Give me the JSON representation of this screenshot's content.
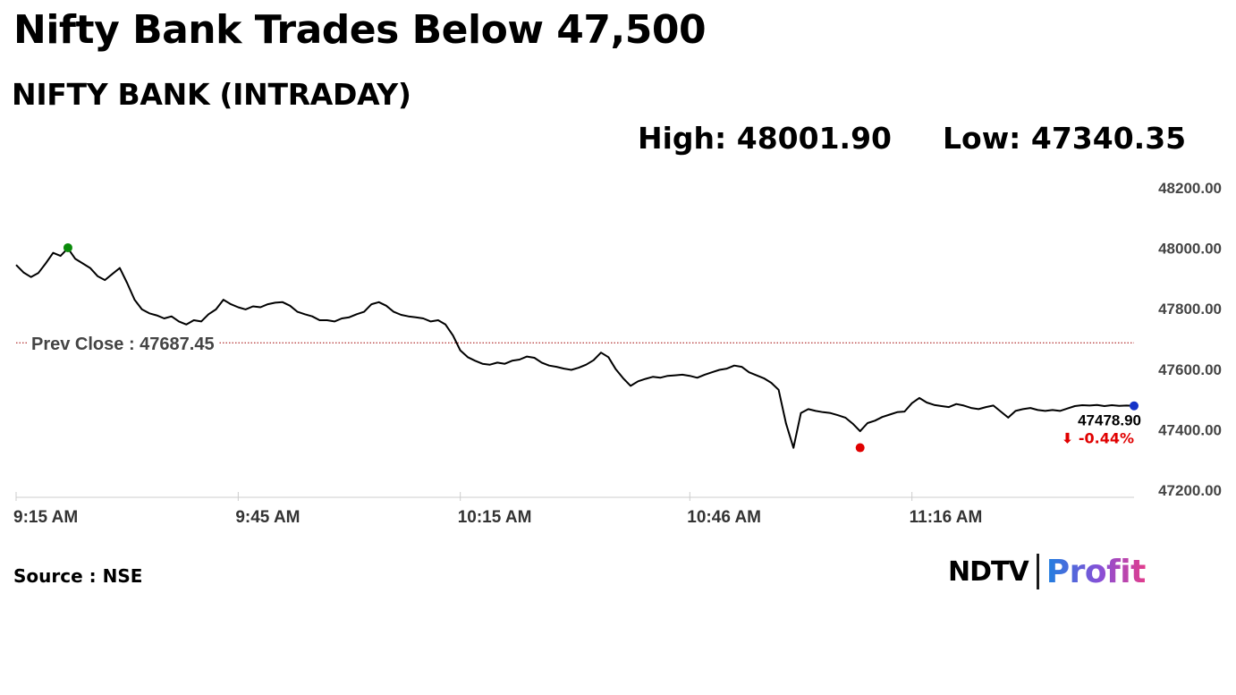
{
  "headline": "Nifty Bank Trades Below 47,500",
  "subtitle": "NIFTY BANK (INTRADAY)",
  "stats": {
    "high": "High: 48001.90",
    "low": "Low: 47340.35"
  },
  "source": "Source : NSE",
  "brand": {
    "primary": "NDTV",
    "secondary": "Profit"
  },
  "colors": {
    "line": "#000000",
    "high_marker": "#0a8a0a",
    "low_marker": "#e00000",
    "last_marker": "#1433c8",
    "prev_close_line": "#a00000",
    "change_negative": "#e00000",
    "axis": "#cccccc"
  },
  "chart_data": {
    "type": "line",
    "title": "",
    "xlabel": "",
    "ylabel": "",
    "ylim": [
      47200,
      48200
    ],
    "yticks": [
      "48200.00",
      "48000.00",
      "47800.00",
      "47600.00",
      "47400.00",
      "47200.00"
    ],
    "ytick_values": [
      48200,
      48000,
      47800,
      47600,
      47400,
      47200
    ],
    "xticks": [
      "9:15 AM",
      "9:45 AM",
      "10:15 AM",
      "10:46 AM",
      "11:16 AM"
    ],
    "xtick_values": [
      0,
      30,
      60,
      91,
      121
    ],
    "xlim": [
      0,
      151
    ],
    "prev_close": 47687.45,
    "prev_close_label": "Prev Close : 47687.45",
    "high": {
      "x": 7,
      "y": 48001.9
    },
    "low": {
      "x": 114,
      "y": 47340.35
    },
    "last": {
      "x": 151,
      "y": 47478.9,
      "label": "47478.90",
      "change": "-0.44%",
      "arrow": "⬇"
    },
    "series": [
      {
        "x": [
          0,
          1,
          2,
          3,
          4,
          5,
          6,
          7,
          8,
          9,
          10,
          11,
          12,
          13,
          14,
          15,
          16,
          17,
          18,
          19,
          20,
          21,
          22,
          23,
          24,
          25,
          26,
          27,
          28,
          29,
          30,
          31,
          32,
          33,
          34,
          35,
          36,
          37,
          38,
          39,
          40,
          41,
          42,
          43,
          44,
          45,
          46,
          47,
          48,
          49,
          50,
          51,
          52,
          53,
          54,
          55,
          56,
          57,
          58,
          59,
          60,
          61,
          62,
          63,
          64,
          65,
          66,
          67,
          68,
          69,
          70,
          71,
          72,
          73,
          74,
          75,
          76,
          77,
          78,
          79,
          80,
          81,
          82,
          83,
          84,
          85,
          86,
          87,
          88,
          89,
          90,
          91,
          92,
          93,
          94,
          95,
          96,
          97,
          98,
          99,
          100,
          101,
          102,
          103,
          104,
          105,
          106,
          107,
          108,
          109,
          110,
          111,
          112,
          113,
          114,
          115,
          116,
          117,
          118,
          119,
          120,
          121,
          122,
          123,
          124,
          125,
          126,
          127,
          128,
          129,
          130,
          131,
          132,
          133,
          134,
          135,
          136,
          137,
          138,
          139,
          140,
          141,
          142,
          143,
          144,
          145,
          146,
          147,
          148,
          149,
          150,
          151
        ],
        "y": [
          47945,
          47920,
          47905,
          47918,
          47950,
          47985,
          47975,
          48000,
          47965,
          47950,
          47935,
          47908,
          47895,
          47915,
          47935,
          47885,
          47830,
          47798,
          47785,
          47778,
          47768,
          47775,
          47758,
          47748,
          47762,
          47758,
          47782,
          47798,
          47830,
          47815,
          47805,
          47798,
          47808,
          47805,
          47815,
          47820,
          47822,
          47810,
          47790,
          47782,
          47775,
          47762,
          47762,
          47758,
          47768,
          47772,
          47782,
          47790,
          47815,
          47822,
          47810,
          47790,
          47780,
          47775,
          47772,
          47768,
          47758,
          47762,
          47748,
          47712,
          47662,
          47640,
          47628,
          47618,
          47615,
          47622,
          47618,
          47628,
          47632,
          47642,
          47638,
          47622,
          47612,
          47608,
          47602,
          47598,
          47605,
          47615,
          47630,
          47655,
          47640,
          47600,
          47570,
          47545,
          47560,
          47568,
          47575,
          47572,
          47578,
          47580,
          47582,
          47578,
          47572,
          47582,
          47590,
          47598,
          47602,
          47612,
          47608,
          47590,
          47580,
          47570,
          47555,
          47532,
          47420,
          47340,
          47455,
          47468,
          47462,
          47458,
          47455,
          47448,
          47440,
          47420,
          47395,
          47422,
          47430,
          47442,
          47450,
          47458,
          47460,
          47488,
          47505,
          47490,
          47482,
          47478,
          47475,
          47485,
          47480,
          47472,
          47468,
          47475,
          47480,
          47460,
          47440,
          47462,
          47468,
          47472,
          47465,
          47462,
          47465,
          47462,
          47470,
          47478,
          47481,
          47480,
          47482,
          47478,
          47481,
          47479,
          47480,
          47478.9
        ]
      }
    ]
  }
}
